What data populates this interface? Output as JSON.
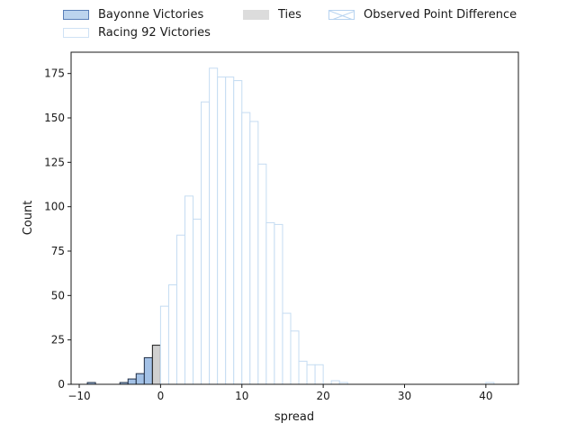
{
  "chart_data": {
    "type": "bar",
    "xlabel": "spread",
    "ylabel": "Count",
    "xlim": [
      -11,
      44
    ],
    "ylim": [
      0,
      187
    ],
    "x_ticks": [
      -10,
      0,
      10,
      20,
      30,
      40
    ],
    "y_ticks": [
      0,
      25,
      50,
      75,
      100,
      125,
      150,
      175
    ],
    "bin_width": 1,
    "legend_position": "top",
    "legend": [
      "Bayonne Victories",
      "Racing 92 Victories",
      "Ties",
      "Observed Point Difference"
    ],
    "series": [
      {
        "name": "Bayonne Victories",
        "color": "#a3c1e6",
        "edge": "#1f2d44",
        "bins": [
          {
            "x0": -9,
            "x1": -8,
            "count": 1
          },
          {
            "x0": -5,
            "x1": -4,
            "count": 1
          },
          {
            "x0": -4,
            "x1": -3,
            "count": 3
          },
          {
            "x0": -3,
            "x1": -2,
            "count": 6
          },
          {
            "x0": -2,
            "x1": -1,
            "count": 15
          }
        ]
      },
      {
        "name": "Ties",
        "color": "#d0d0d0",
        "edge": "#1a1a1a",
        "bins": [
          {
            "x0": -1,
            "x1": 0,
            "count": 22
          }
        ]
      },
      {
        "name": "Racing 92 Victories",
        "color": "#ffffff",
        "edge": "#c5dcf2",
        "bins": [
          {
            "x0": 0,
            "x1": 1,
            "count": 44
          },
          {
            "x0": 1,
            "x1": 2,
            "count": 56
          },
          {
            "x0": 2,
            "x1": 3,
            "count": 84
          },
          {
            "x0": 3,
            "x1": 4,
            "count": 106
          },
          {
            "x0": 4,
            "x1": 5,
            "count": 93
          },
          {
            "x0": 5,
            "x1": 6,
            "count": 159
          },
          {
            "x0": 6,
            "x1": 7,
            "count": 178
          },
          {
            "x0": 7,
            "x1": 8,
            "count": 173
          },
          {
            "x0": 8,
            "x1": 9,
            "count": 173
          },
          {
            "x0": 9,
            "x1": 10,
            "count": 171
          },
          {
            "x0": 10,
            "x1": 11,
            "count": 153
          },
          {
            "x0": 11,
            "x1": 12,
            "count": 148
          },
          {
            "x0": 12,
            "x1": 13,
            "count": 124
          },
          {
            "x0": 13,
            "x1": 14,
            "count": 91
          },
          {
            "x0": 14,
            "x1": 15,
            "count": 90
          },
          {
            "x0": 15,
            "x1": 16,
            "count": 40
          },
          {
            "x0": 16,
            "x1": 17,
            "count": 30
          },
          {
            "x0": 17,
            "x1": 18,
            "count": 13
          },
          {
            "x0": 18,
            "x1": 19,
            "count": 11
          },
          {
            "x0": 19,
            "x1": 20,
            "count": 11
          },
          {
            "x0": 21,
            "x1": 22,
            "count": 2
          },
          {
            "x0": 22,
            "x1": 23,
            "count": 1
          },
          {
            "x0": 40,
            "x1": 41,
            "count": 1
          }
        ]
      }
    ]
  }
}
